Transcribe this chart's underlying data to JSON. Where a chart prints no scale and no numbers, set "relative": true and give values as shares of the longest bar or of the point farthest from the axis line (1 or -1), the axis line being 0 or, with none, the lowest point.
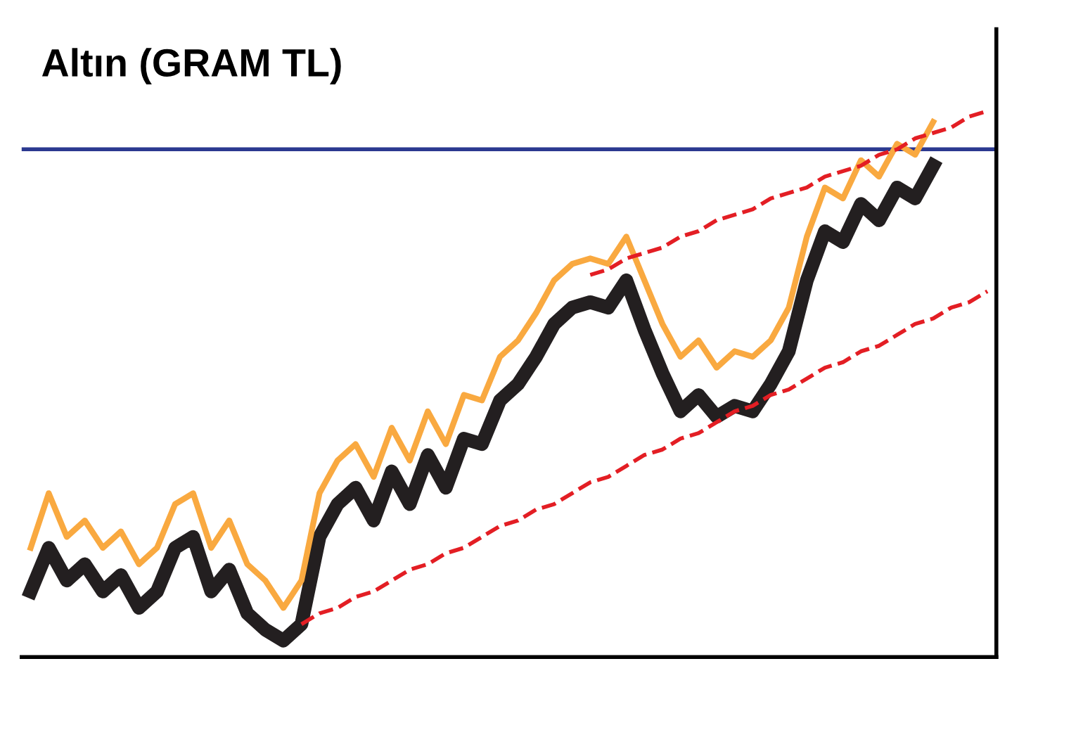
{
  "chart_data": {
    "type": "line",
    "title": "Altın (GRAM TL)",
    "relative": true,
    "grid": false,
    "legend": false,
    "categories": [
      null,
      null,
      null,
      null,
      null,
      null,
      null,
      null,
      null,
      null,
      null,
      null,
      null,
      null,
      null,
      null,
      null,
      null,
      null,
      null,
      null,
      null,
      null,
      null,
      null,
      null,
      null,
      null,
      null,
      null,
      null,
      null,
      null,
      null,
      null,
      null,
      null,
      null,
      null,
      null,
      null,
      null,
      null,
      null,
      null,
      null,
      null,
      null,
      null,
      null,
      null,
      null,
      null,
      null
    ],
    "ref_lines": [
      {
        "axis": "y",
        "value": 0.93,
        "color": "#2b3990"
      }
    ],
    "series": [
      {
        "color": "#231f20",
        "values": [
          0.12,
          0.2,
          0.14,
          0.17,
          0.12,
          0.15,
          0.09,
          0.12,
          0.2,
          0.22,
          0.12,
          0.16,
          0.08,
          0.05,
          0.03,
          0.06,
          0.22,
          0.28,
          0.31,
          0.25,
          0.34,
          0.28,
          0.37,
          0.31,
          0.4,
          0.39,
          0.47,
          0.5,
          0.55,
          0.61,
          0.64,
          0.65,
          0.64,
          0.69,
          0.6,
          0.52,
          0.45,
          0.48,
          0.44,
          0.46,
          0.45,
          0.5,
          0.56,
          0.69,
          0.78,
          0.76,
          0.83,
          0.8,
          0.86,
          0.84,
          0.9,
          null,
          null,
          null
        ]
      },
      {
        "color": "#f9a940",
        "values": [
          0.2,
          0.3,
          0.22,
          0.25,
          0.2,
          0.23,
          0.17,
          0.2,
          0.28,
          0.3,
          0.2,
          0.25,
          0.17,
          0.14,
          0.09,
          0.14,
          0.3,
          0.36,
          0.39,
          0.33,
          0.42,
          0.36,
          0.45,
          0.39,
          0.48,
          0.47,
          0.55,
          0.58,
          0.63,
          0.69,
          0.72,
          0.73,
          0.72,
          0.77,
          0.69,
          0.61,
          0.55,
          0.58,
          0.53,
          0.56,
          0.55,
          0.58,
          0.64,
          0.77,
          0.86,
          0.84,
          0.91,
          0.88,
          0.94,
          0.92,
          0.98,
          null,
          null,
          null
        ]
      },
      {
        "color": "#e31e24",
        "line_style": "dashed",
        "values": [
          null,
          null,
          null,
          null,
          null,
          null,
          null,
          null,
          null,
          null,
          null,
          null,
          null,
          null,
          null,
          0.06,
          0.08,
          0.09,
          0.11,
          0.12,
          0.14,
          0.16,
          0.17,
          0.19,
          0.2,
          0.22,
          0.24,
          0.25,
          0.27,
          0.28,
          0.3,
          0.32,
          0.33,
          0.35,
          0.37,
          0.38,
          0.4,
          0.41,
          0.43,
          0.45,
          0.46,
          0.48,
          0.49,
          0.51,
          0.53,
          0.54,
          0.56,
          0.57,
          0.59,
          0.61,
          0.62,
          0.64,
          0.65,
          0.67
        ]
      },
      {
        "color": "#e31e24",
        "line_style": "dashed",
        "values": [
          null,
          null,
          null,
          null,
          null,
          null,
          null,
          null,
          null,
          null,
          null,
          null,
          null,
          null,
          null,
          null,
          null,
          null,
          null,
          null,
          null,
          null,
          null,
          null,
          null,
          null,
          null,
          null,
          null,
          null,
          null,
          0.7,
          0.71,
          0.73,
          0.74,
          0.75,
          0.77,
          0.78,
          0.8,
          0.81,
          0.82,
          0.84,
          0.85,
          0.86,
          0.88,
          0.89,
          0.9,
          0.92,
          0.93,
          0.95,
          0.96,
          0.97,
          0.99,
          1.0
        ]
      }
    ]
  }
}
